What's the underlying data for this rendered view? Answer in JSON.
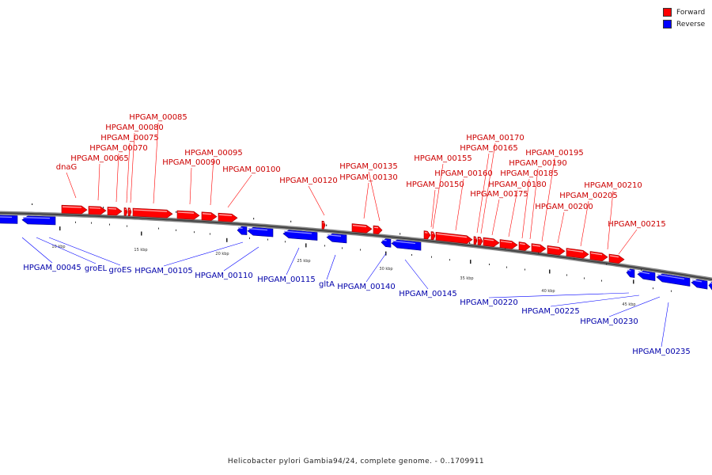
{
  "legend": {
    "forward_label": "Forward",
    "reverse_label": "Reverse",
    "forward_color": "#ff0000",
    "reverse_color": "#0000ff"
  },
  "caption": "Helicobacter pylori Gambia94/24, complete genome. - 0..1709911",
  "scale_labels": [
    "10 kbp",
    "15 kbp",
    "20 kbp",
    "25 kbp",
    "30 kbp",
    "35 kbp",
    "40 kbp",
    "45 kbp"
  ],
  "forward_genes": [
    "dnaG",
    "HPGAM_00065",
    "HPGAM_00070",
    "HPGAM_00075",
    "HPGAM_00080",
    "HPGAM_00085",
    "HPGAM_00090",
    "HPGAM_00095",
    "HPGAM_00100",
    "HPGAM_00120",
    "HPGAM_00130",
    "HPGAM_00135",
    "HPGAM_00150",
    "HPGAM_00155",
    "HPGAM_00160",
    "HPGAM_00165",
    "HPGAM_00170",
    "HPGAM_00175",
    "HPGAM_00180",
    "HPGAM_00185",
    "HPGAM_00190",
    "HPGAM_00195",
    "HPGAM_00200",
    "HPGAM_00205",
    "HPGAM_00210",
    "HPGAM_00215"
  ],
  "reverse_genes": [
    "HPGAM_00045",
    "groEL",
    "groES",
    "HPGAM_00105",
    "HPGAM_00110",
    "HPGAM_00115",
    "gltA",
    "HPGAM_00140",
    "HPGAM_00145",
    "HPGAM_00220",
    "HPGAM_00225",
    "HPGAM_00230",
    "HPGAM_00235"
  ]
}
